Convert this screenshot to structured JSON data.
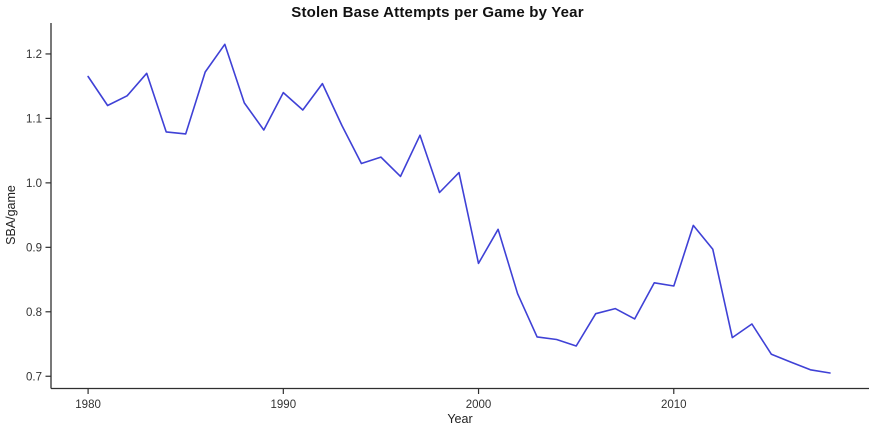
{
  "chart_data": {
    "type": "line",
    "title": "Stolen Base Attempts per Game by Year",
    "xlabel": "Year",
    "ylabel": "SBA/game",
    "x": [
      1980,
      1981,
      1982,
      1983,
      1984,
      1985,
      1986,
      1987,
      1988,
      1989,
      1990,
      1991,
      1992,
      1993,
      1994,
      1995,
      1996,
      1997,
      1998,
      1999,
      2000,
      2001,
      2002,
      2003,
      2004,
      2005,
      2006,
      2007,
      2008,
      2009,
      2010,
      2011,
      2012,
      2013,
      2014,
      2015,
      2016,
      2017,
      2018
    ],
    "values": [
      1.165,
      1.12,
      1.135,
      1.17,
      1.079,
      1.076,
      1.172,
      1.215,
      1.124,
      1.082,
      1.14,
      1.113,
      1.154,
      1.089,
      1.03,
      1.04,
      1.01,
      1.074,
      0.985,
      1.016,
      0.875,
      0.928,
      0.828,
      0.761,
      0.757,
      0.747,
      0.797,
      0.805,
      0.789,
      0.845,
      0.84,
      0.934,
      0.897,
      0.76,
      0.781,
      0.734,
      0.722,
      0.71,
      0.705
    ],
    "xlim": [
      1978.1,
      2020.0
    ],
    "ylim": [
      0.681,
      1.248
    ],
    "x_ticks": [
      1980,
      1990,
      2000,
      2010
    ],
    "x_tick_labels": [
      "1980",
      "1990",
      "2000",
      "2010"
    ],
    "y_ticks": [
      0.7,
      0.8,
      0.9,
      1.0,
      1.1,
      1.2
    ],
    "y_tick_labels": [
      "0.7",
      "0.8",
      "0.9",
      "1.0",
      "1.1",
      "1.2"
    ],
    "line_color": "#3f41d6",
    "axis_color": "#2f2f2f",
    "grid": false,
    "legend": null
  }
}
